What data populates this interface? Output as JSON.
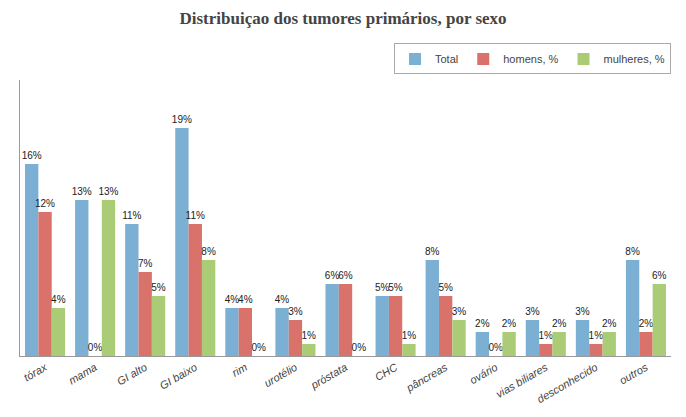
{
  "chart_data": {
    "type": "bar",
    "title": "Distribuiçao dos tumores primários, por sexo",
    "categories": [
      "tórax",
      "mama",
      "GI alto",
      "GI baixo",
      "rim",
      "urotélio",
      "próstata",
      "CHC",
      "pâncreas",
      "ovário",
      "vias biliares",
      "desconhecido",
      "outros"
    ],
    "series": [
      {
        "name": "Total",
        "color": "#7BAFD4",
        "values": [
          16,
          13,
          11,
          19,
          4,
          4,
          6,
          5,
          8,
          2,
          3,
          3,
          8
        ],
        "value_labels": [
          "16%",
          "13%",
          "11%",
          "19%",
          "4%",
          "4%",
          "6%",
          "5%",
          "8%",
          "2%",
          "3%",
          "3%",
          "8%"
        ]
      },
      {
        "name": "homens, %",
        "color": "#D9726A",
        "values": [
          12,
          0,
          7,
          11,
          4,
          3,
          6,
          5,
          5,
          0,
          1,
          1,
          2
        ],
        "value_labels": [
          "12%",
          "0%",
          "7%",
          "11%",
          "4%",
          "3%",
          "6%",
          "5%",
          "5%",
          "0%",
          "1%",
          "1%",
          "2%"
        ]
      },
      {
        "name": "mulheres, %",
        "color": "#AACC77",
        "values": [
          4,
          13,
          5,
          8,
          0,
          1,
          0,
          1,
          3,
          2,
          2,
          2,
          6
        ],
        "value_labels": [
          "4%",
          "13%",
          "5%",
          "8%",
          "0%",
          "1%",
          "0%",
          "1%",
          "3%",
          "2%",
          "2%",
          "2%",
          "6%"
        ]
      }
    ],
    "ylim": [
      0,
      23
    ],
    "yticks": [],
    "grid": false,
    "legend": "upper right",
    "data_labels": true,
    "tick_labels": "x"
  }
}
